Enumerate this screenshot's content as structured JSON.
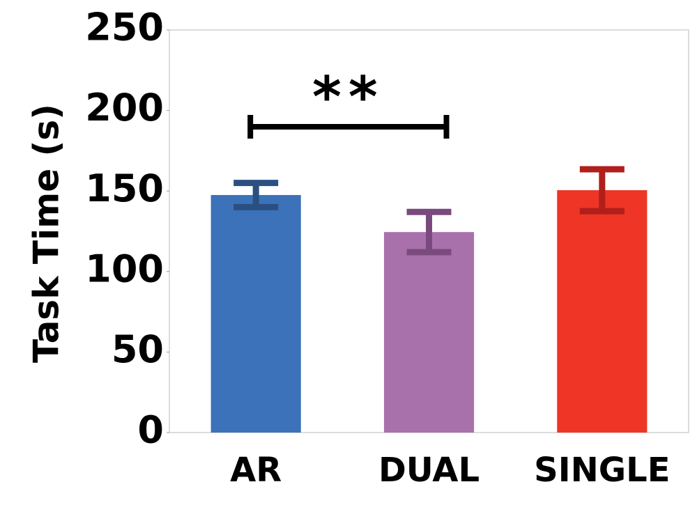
{
  "chart_data": {
    "type": "bar",
    "y_label": "Task Time (s)",
    "categories": [
      "AR",
      "DUAL",
      "SINGLE"
    ],
    "values": [
      147.5,
      124.5,
      150.5
    ],
    "errors": [
      7.5,
      12.5,
      13
    ],
    "colors": [
      "#3b72b9",
      "#a971ab",
      "#ee3526"
    ],
    "error_colors": [
      "#2b4f80",
      "#7a4a7e",
      "#b01f1b"
    ],
    "ylim": [
      0,
      250
    ],
    "yticks": [
      0,
      50,
      100,
      150,
      200,
      250
    ],
    "annotation": "**"
  }
}
